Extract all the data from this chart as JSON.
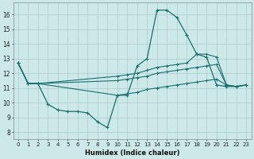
{
  "xlabel": "Humidex (Indice chaleur)",
  "xlim": [
    -0.5,
    23.5
  ],
  "ylim": [
    7.5,
    16.8
  ],
  "yticks": [
    8,
    9,
    10,
    11,
    12,
    13,
    14,
    15,
    16
  ],
  "xticks": [
    0,
    1,
    2,
    3,
    4,
    5,
    6,
    7,
    8,
    9,
    10,
    11,
    12,
    13,
    14,
    15,
    16,
    17,
    18,
    19,
    20,
    21,
    22,
    23
  ],
  "xtick_labels": [
    "0",
    "1",
    "2",
    "3",
    "4",
    "5",
    "6",
    "7",
    "8",
    "9",
    "10",
    "11",
    "12",
    "13",
    "14",
    "15",
    "16",
    "17",
    "18",
    "19",
    "20",
    "21",
    "22",
    "23"
  ],
  "bg_color": "#cce8e8",
  "grid_color": "#aacccc",
  "line_color": "#1a6e6e",
  "curve1_x": [
    0,
    1,
    2,
    3,
    4,
    5,
    6,
    7,
    8,
    9,
    10,
    11,
    12,
    13,
    14,
    15,
    16,
    17,
    18,
    19,
    20,
    21,
    22,
    23
  ],
  "curve1_y": [
    12.7,
    11.3,
    11.3,
    9.9,
    9.5,
    9.4,
    9.4,
    9.3,
    8.7,
    8.3,
    10.5,
    10.5,
    12.5,
    13.0,
    16.3,
    16.3,
    15.8,
    14.6,
    13.3,
    13.1,
    11.2,
    11.1,
    11.1,
    11.2
  ],
  "curve2_x": [
    0,
    1,
    2,
    10,
    11,
    12,
    13,
    14,
    15,
    16,
    17,
    18,
    19,
    20,
    21,
    22,
    23
  ],
  "curve2_y": [
    12.7,
    11.3,
    11.3,
    11.8,
    11.9,
    12.0,
    12.2,
    12.4,
    12.5,
    12.6,
    12.7,
    13.3,
    13.3,
    13.1,
    11.2,
    11.1,
    11.2
  ],
  "curve3_x": [
    0,
    1,
    2,
    10,
    11,
    12,
    13,
    14,
    15,
    16,
    17,
    18,
    19,
    20,
    21,
    22,
    23
  ],
  "curve3_y": [
    12.7,
    11.3,
    11.3,
    11.5,
    11.6,
    11.7,
    11.8,
    12.0,
    12.1,
    12.2,
    12.3,
    12.4,
    12.5,
    12.6,
    11.2,
    11.1,
    11.2
  ],
  "curve4_x": [
    0,
    1,
    2,
    10,
    11,
    12,
    13,
    14,
    15,
    16,
    17,
    18,
    19,
    20,
    21,
    22,
    23
  ],
  "curve4_y": [
    12.7,
    11.3,
    11.3,
    10.5,
    10.6,
    10.7,
    10.9,
    11.0,
    11.1,
    11.2,
    11.3,
    11.4,
    11.5,
    11.6,
    11.2,
    11.1,
    11.2
  ]
}
